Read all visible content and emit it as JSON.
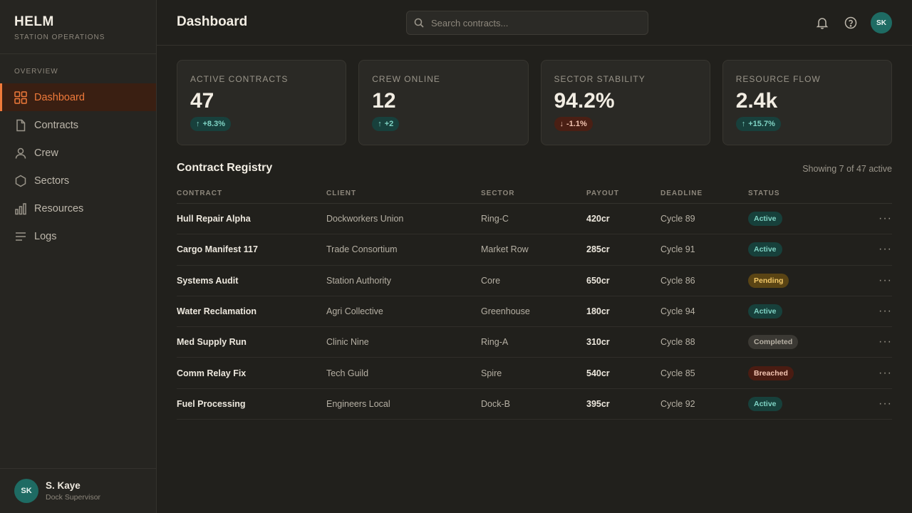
{
  "sidebar": {
    "brand_title": "HELM",
    "brand_sub": "STATION OPERATIONS",
    "section": "OVERVIEW",
    "items": [
      {
        "label": "Dashboard",
        "icon": "grid-icon",
        "active": true
      },
      {
        "label": "Contracts",
        "icon": "document-icon"
      },
      {
        "label": "Crew",
        "icon": "user-icon"
      },
      {
        "label": "Sectors",
        "icon": "hexagon-icon"
      },
      {
        "label": "Resources",
        "icon": "bar-chart-icon"
      },
      {
        "label": "Logs",
        "icon": "lines-icon"
      }
    ],
    "user": {
      "initials": "SK",
      "name": "S. Kaye",
      "role": "Dock Supervisor"
    }
  },
  "header": {
    "title": "Dashboard",
    "search_placeholder": "Search contracts...",
    "avatar_initials": "SK"
  },
  "stats": [
    {
      "label": "ACTIVE CONTRACTS",
      "value": "47",
      "delta": "+8.3%",
      "trend": "up"
    },
    {
      "label": "CREW ONLINE",
      "value": "12",
      "delta": "+2",
      "trend": "up"
    },
    {
      "label": "SECTOR STABILITY",
      "value": "94.2%",
      "delta": "-1.1%",
      "trend": "down"
    },
    {
      "label": "RESOURCE FLOW",
      "value": "2.4k",
      "delta": "+15.7%",
      "trend": "up"
    }
  ],
  "registry": {
    "title": "Contract Registry",
    "count": "Showing 7 of 47 active",
    "columns": [
      "CONTRACT",
      "CLIENT",
      "SECTOR",
      "PAYOUT",
      "DEADLINE",
      "STATUS"
    ],
    "rows": [
      {
        "contract": "Hull Repair Alpha",
        "client": "Dockworkers Union",
        "sector": "Ring-C",
        "payout": "420cr",
        "deadline": "Cycle 89",
        "status": "Active"
      },
      {
        "contract": "Cargo Manifest 117",
        "client": "Trade Consortium",
        "sector": "Market Row",
        "payout": "285cr",
        "deadline": "Cycle 91",
        "status": "Active"
      },
      {
        "contract": "Systems Audit",
        "client": "Station Authority",
        "sector": "Core",
        "payout": "650cr",
        "deadline": "Cycle 86",
        "status": "Pending"
      },
      {
        "contract": "Water Reclamation",
        "client": "Agri Collective",
        "sector": "Greenhouse",
        "payout": "180cr",
        "deadline": "Cycle 94",
        "status": "Active"
      },
      {
        "contract": "Med Supply Run",
        "client": "Clinic Nine",
        "sector": "Ring-A",
        "payout": "310cr",
        "deadline": "Cycle 88",
        "status": "Completed"
      },
      {
        "contract": "Comm Relay Fix",
        "client": "Tech Guild",
        "sector": "Spire",
        "payout": "540cr",
        "deadline": "Cycle 85",
        "status": "Breached"
      },
      {
        "contract": "Fuel Processing",
        "client": "Engineers Local",
        "sector": "Dock-B",
        "payout": "395cr",
        "deadline": "Cycle 92",
        "status": "Active"
      }
    ]
  },
  "colors": {
    "accent": "#f07a3a",
    "teal": "#1e6b63",
    "background": "#21201c"
  }
}
